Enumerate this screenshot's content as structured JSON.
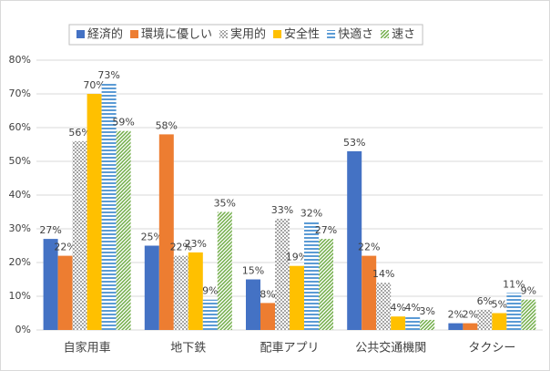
{
  "chart_data": {
    "type": "bar",
    "categories": [
      "自家用車",
      "地下鉄",
      "配車アプリ",
      "公共交通機関",
      "タクシー"
    ],
    "series": [
      {
        "name": "経済的",
        "color": "#4472c4",
        "values": [
          27,
          25,
          15,
          53,
          2
        ],
        "value_labels": [
          "27%",
          "25%",
          "15%",
          "53%",
          "2%"
        ]
      },
      {
        "name": "環境に優しい",
        "color": "#ed7d31",
        "values": [
          22,
          58,
          8,
          22,
          2
        ],
        "value_labels": [
          "22%",
          "58%",
          "8%",
          "22%",
          "2%"
        ]
      },
      {
        "name": "実用的",
        "color": "#a5a5a5",
        "pattern": "dots",
        "values": [
          56,
          22,
          33,
          14,
          6
        ],
        "value_labels": [
          "56%",
          "22%",
          "33%",
          "14%",
          "6%"
        ]
      },
      {
        "name": "安全性",
        "color": "#ffc000",
        "values": [
          70,
          23,
          19,
          4,
          5
        ],
        "value_labels": [
          "70%",
          "23%",
          "19%",
          "4%",
          "5%"
        ]
      },
      {
        "name": "快適さ",
        "color": "#5b9bd5",
        "pattern": "hlines",
        "values": [
          73,
          9,
          32,
          4,
          11
        ],
        "value_labels": [
          "73%",
          "9%",
          "32%",
          "4%",
          "11%"
        ]
      },
      {
        "name": "速さ",
        "color": "#70ad47",
        "pattern": "diagonal",
        "values": [
          59,
          35,
          27,
          3,
          9
        ],
        "value_labels": [
          "59%",
          "35%",
          "27%",
          "3%",
          "9%"
        ]
      }
    ],
    "ylim": [
      0,
      80
    ],
    "yticks": [
      {
        "value": 0,
        "label": "0%"
      },
      {
        "value": 10,
        "label": "10%"
      },
      {
        "value": 20,
        "label": "20%"
      },
      {
        "value": 30,
        "label": "30%"
      },
      {
        "value": 40,
        "label": "40%"
      },
      {
        "value": 50,
        "label": "50%"
      },
      {
        "value": 60,
        "label": "60%"
      },
      {
        "value": 70,
        "label": "70%"
      },
      {
        "value": 80,
        "label": "80%"
      }
    ],
    "legend": "top"
  }
}
